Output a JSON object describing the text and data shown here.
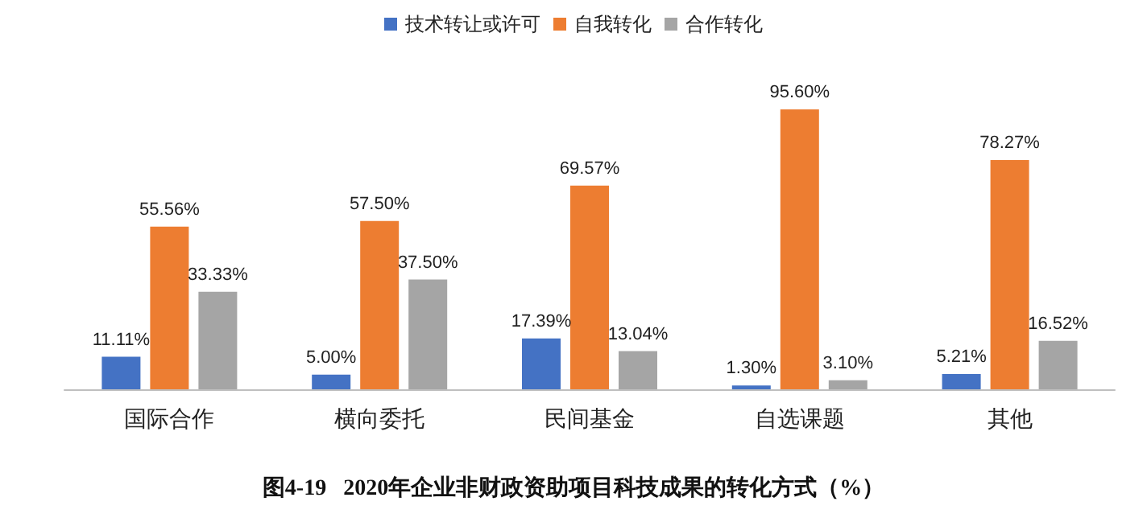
{
  "chart_data": {
    "type": "bar",
    "title": "图4-19   2020年企业非财政资助项目科技成果的转化方式（%）",
    "categories": [
      "国际合作",
      "横向委托",
      "民间基金",
      "自选课题",
      "其他"
    ],
    "series": [
      {
        "name": "技术转让或许可",
        "color": "#4472c4",
        "values": [
          11.11,
          5.0,
          17.39,
          1.3,
          5.21
        ],
        "value_labels": [
          "11.11%",
          "5.00%",
          "17.39%",
          "1.30%",
          "5.21%"
        ]
      },
      {
        "name": "自我转化",
        "color": "#ed7d31",
        "values": [
          55.56,
          57.5,
          69.57,
          95.6,
          78.27
        ],
        "value_labels": [
          "55.56%",
          "57.50%",
          "69.57%",
          "95.60%",
          "78.27%"
        ]
      },
      {
        "name": "合作转化",
        "color": "#a5a5a5",
        "values": [
          33.33,
          37.5,
          13.04,
          3.1,
          16.52
        ],
        "value_labels": [
          "33.33%",
          "37.50%",
          "13.04%",
          "3.10%",
          "16.52%"
        ]
      }
    ],
    "legend": "top",
    "grid": false,
    "tick_labels": "x"
  }
}
